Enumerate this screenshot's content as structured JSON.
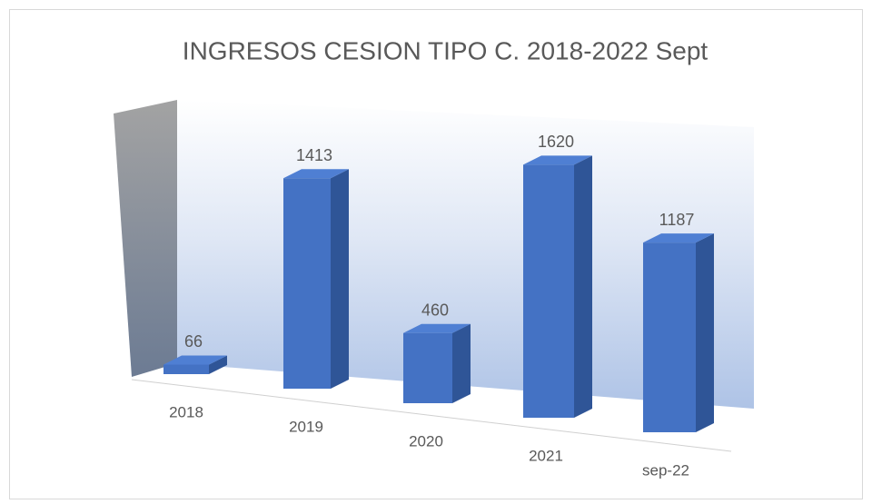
{
  "chart_data": {
    "type": "bar3d",
    "title": "INGRESOS CESION TIPO C. 2018-2022 Sept",
    "categories": [
      "2018",
      "2019",
      "2020",
      "2021",
      "sep-22"
    ],
    "values": [
      66,
      1413,
      460,
      1620,
      1187
    ],
    "color": "#4472c4"
  }
}
